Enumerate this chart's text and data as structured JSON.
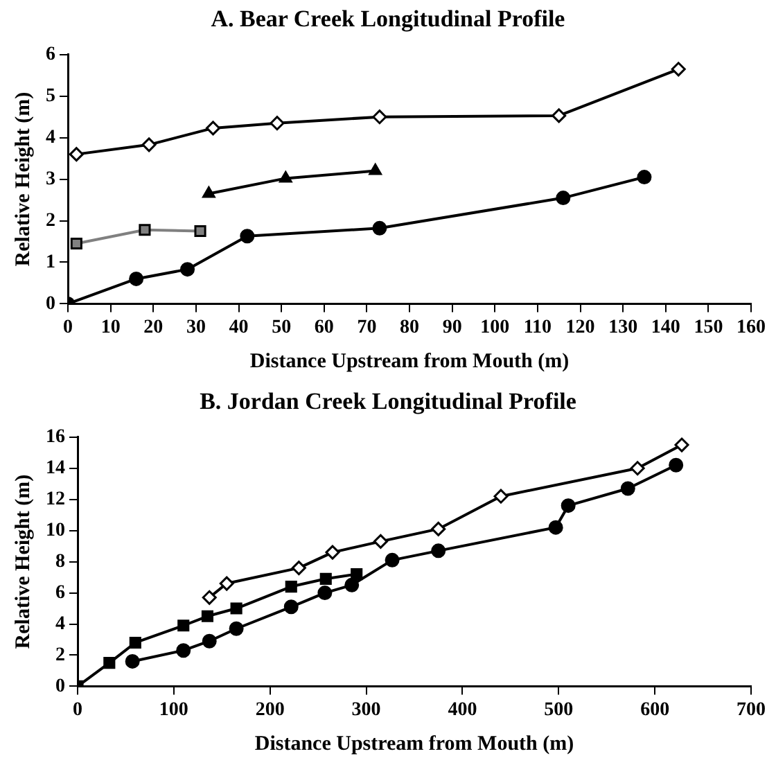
{
  "chart_data": [
    {
      "type": "line",
      "title": "A.  Bear Creek Longitudinal Profile",
      "xlabel": "Distance Upstream from Mouth (m)",
      "ylabel": "Relative Height (m)",
      "xlim": [
        0,
        160
      ],
      "xticks": [
        0,
        10,
        20,
        30,
        40,
        50,
        60,
        70,
        80,
        90,
        100,
        110,
        120,
        130,
        140,
        150,
        160
      ],
      "ylim": [
        0,
        6
      ],
      "yticks": [
        0,
        1,
        2,
        3,
        4,
        5,
        6
      ],
      "grid": false,
      "legend": false,
      "series": [
        {
          "color": "#000000",
          "marker": "diamond",
          "x": [
            2,
            19,
            34,
            49,
            73,
            115,
            143
          ],
          "values": [
            3.6,
            3.83,
            4.23,
            4.35,
            4.5,
            4.53,
            5.65
          ]
        },
        {
          "color": "#000000",
          "marker": "triangle",
          "x": [
            33,
            51,
            72
          ],
          "values": [
            2.65,
            3.02,
            3.2
          ]
        },
        {
          "color": "#808080",
          "marker": "square",
          "x": [
            2,
            18,
            31
          ],
          "values": [
            1.45,
            1.78,
            1.75
          ]
        },
        {
          "color": "#000000",
          "marker": "circle",
          "x": [
            0,
            16,
            28,
            42,
            73,
            116,
            135
          ],
          "values": [
            0,
            0.6,
            0.83,
            1.63,
            1.82,
            2.55,
            3.05
          ]
        }
      ]
    },
    {
      "type": "line",
      "title": "B.  Jordan Creek Longitudinal Profile",
      "xlabel": "Distance Upstream from Mouth (m)",
      "ylabel": "Relative Height (m)",
      "xlim": [
        0,
        700
      ],
      "xticks": [
        0,
        100,
        200,
        300,
        400,
        500,
        600,
        700
      ],
      "ylim": [
        0,
        16
      ],
      "yticks": [
        0,
        2,
        4,
        6,
        8,
        10,
        12,
        14,
        16
      ],
      "grid": false,
      "legend": false,
      "series": [
        {
          "color": "#000000",
          "marker": "diamond",
          "x": [
            137,
            155,
            230,
            265,
            315,
            375,
            440,
            582,
            628
          ],
          "values": [
            5.7,
            6.6,
            7.6,
            8.6,
            9.3,
            10.1,
            12.2,
            14,
            15.5
          ]
        },
        {
          "color": "#000000",
          "marker": "square",
          "x": [
            0,
            33,
            60,
            110,
            135,
            165,
            222,
            258,
            290
          ],
          "values": [
            0,
            1.5,
            2.8,
            3.9,
            4.5,
            5,
            6.4,
            6.9,
            7.2
          ]
        },
        {
          "color": "#000000",
          "marker": "circle",
          "x": [
            57,
            110,
            137,
            165,
            222,
            257,
            285,
            327,
            375,
            497,
            510,
            572,
            622
          ],
          "values": [
            1.6,
            2.3,
            2.9,
            3.7,
            5.1,
            6,
            6.5,
            8.1,
            8.7,
            10.2,
            11.6,
            12.7,
            14.2
          ]
        }
      ]
    }
  ]
}
